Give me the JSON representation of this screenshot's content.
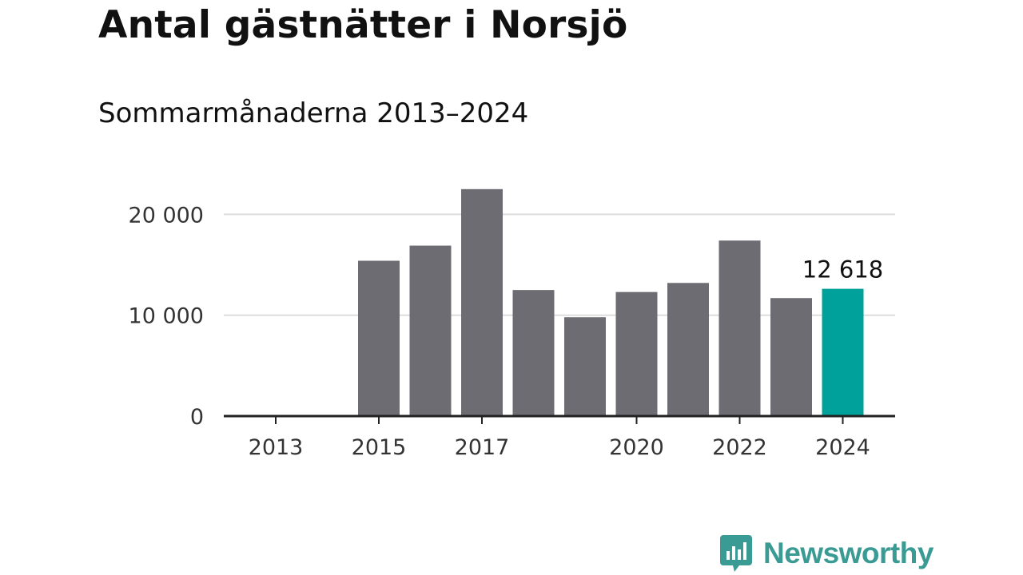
{
  "header": {
    "title": "Antal gästnätter i Norsjö",
    "subtitle": "Sommarmånaderna 2013–2024"
  },
  "brand": {
    "name": "Newsworthy",
    "icon": "bar-chart-speech-bubble-icon",
    "color": "#3a9a94"
  },
  "colors": {
    "bar": "#6d6c72",
    "highlight": "#00a19a",
    "grid": "#dddddd",
    "axis": "#222222",
    "text": "#333333"
  },
  "chart_data": {
    "type": "bar",
    "title": "Antal gästnätter i Norsjö",
    "subtitle": "Sommarmånaderna 2013–2024",
    "xlabel": "",
    "ylabel": "",
    "categories": [
      "2013",
      "2014",
      "2015",
      "2016",
      "2017",
      "2018",
      "2019",
      "2020",
      "2021",
      "2022",
      "2023",
      "2024"
    ],
    "values": [
      null,
      null,
      15400,
      16900,
      22500,
      12500,
      9800,
      12300,
      13200,
      17400,
      11700,
      12618
    ],
    "highlight_category": "2024",
    "highlight_label": "12 618",
    "x_tick_labels": [
      "2013",
      "2015",
      "2017",
      "2020",
      "2022",
      "2024"
    ],
    "y_ticks": [
      0,
      10000,
      20000
    ],
    "y_tick_labels": [
      "0",
      "10 000",
      "20 000"
    ],
    "ylim": [
      0,
      22500
    ],
    "grid": true,
    "legend": "none"
  }
}
